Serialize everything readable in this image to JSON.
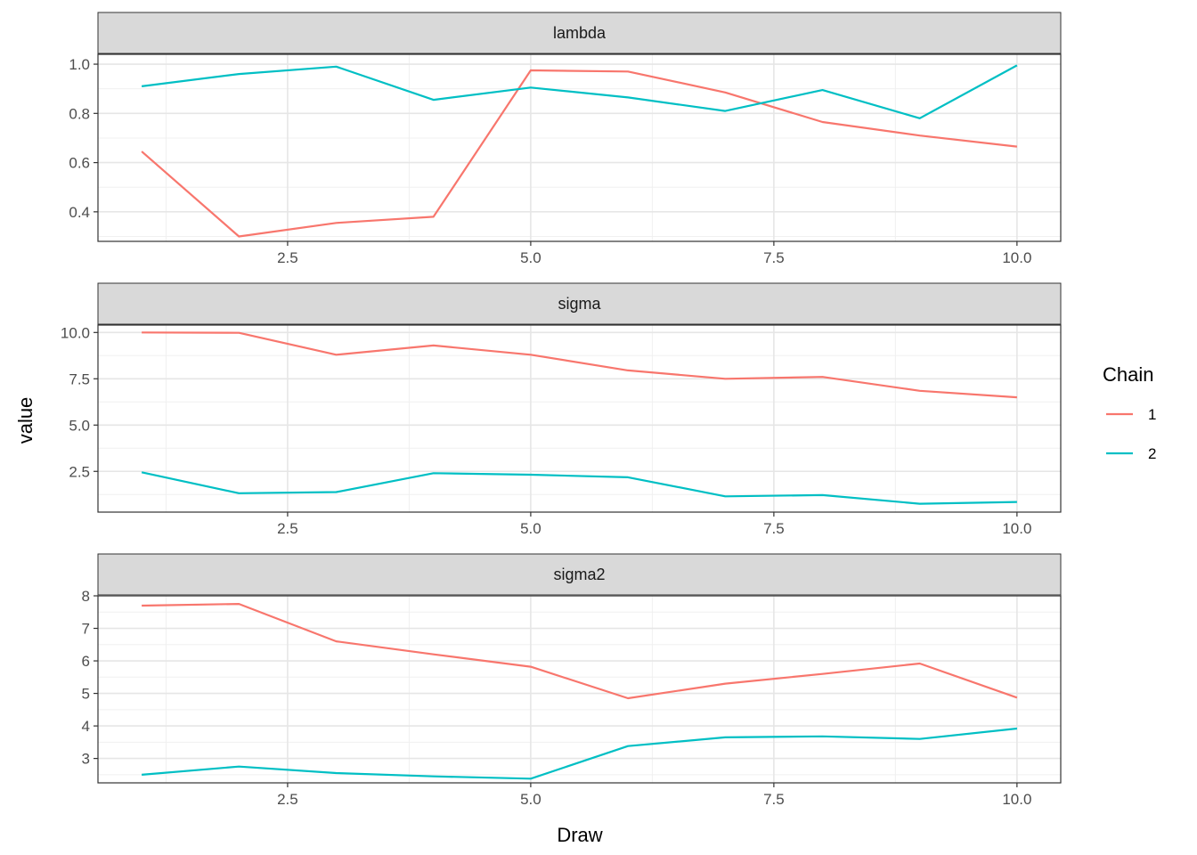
{
  "chart_data": {
    "type": "line",
    "xlabel": "Draw",
    "ylabel": "value",
    "grid": true,
    "legend": {
      "title": "Chain",
      "placement": "right",
      "entries": [
        {
          "label": "1",
          "color": "#F8766D"
        },
        {
          "label": "2",
          "color": "#00BFC4"
        }
      ]
    },
    "xlim": [
      0.55,
      10.45
    ],
    "x_ticks": [
      2.5,
      5.0,
      7.5,
      10.0
    ],
    "x_tick_labels": [
      "2.5",
      "5.0",
      "7.5",
      "10.0"
    ],
    "x": [
      1,
      2,
      3,
      4,
      5,
      6,
      7,
      8,
      9,
      10
    ],
    "panels": [
      {
        "strip": "lambda",
        "ylim": [
          0.28,
          1.04
        ],
        "y_ticks": [
          0.4,
          0.6,
          0.8,
          1.0
        ],
        "y_tick_labels": [
          "0.4",
          "0.6",
          "0.8",
          "1.0"
        ],
        "series": [
          {
            "chain": "1",
            "values": [
              0.645,
              0.3,
              0.355,
              0.38,
              0.975,
              0.97,
              0.885,
              0.765,
              0.71,
              0.665
            ]
          },
          {
            "chain": "2",
            "values": [
              0.91,
              0.96,
              0.99,
              0.855,
              0.905,
              0.865,
              0.81,
              0.895,
              0.78,
              0.995
            ]
          }
        ]
      },
      {
        "strip": "sigma",
        "ylim": [
          0.3,
          10.4
        ],
        "y_ticks": [
          2.5,
          5.0,
          7.5,
          10.0
        ],
        "y_tick_labels": [
          "2.5",
          "5.0",
          "7.5",
          "10.0"
        ],
        "series": [
          {
            "chain": "1",
            "values": [
              10.0,
              9.98,
              8.8,
              9.3,
              8.8,
              7.95,
              7.5,
              7.6,
              6.85,
              6.5
            ]
          },
          {
            "chain": "2",
            "values": [
              2.45,
              1.32,
              1.38,
              2.4,
              2.32,
              2.18,
              1.15,
              1.22,
              0.75,
              0.85
            ]
          }
        ]
      },
      {
        "strip": "sigma2",
        "ylim": [
          2.25,
          8.0
        ],
        "y_ticks": [
          3,
          4,
          5,
          6,
          7,
          8
        ],
        "y_tick_labels": [
          "3",
          "4",
          "5",
          "6",
          "7",
          "8"
        ],
        "series": [
          {
            "chain": "1",
            "values": [
              7.7,
              7.75,
              6.6,
              6.2,
              5.82,
              4.85,
              5.3,
              5.6,
              5.92,
              4.87
            ]
          },
          {
            "chain": "2",
            "values": [
              2.5,
              2.75,
              2.55,
              2.45,
              2.38,
              3.38,
              3.65,
              3.68,
              3.6,
              3.92
            ]
          }
        ]
      }
    ]
  }
}
